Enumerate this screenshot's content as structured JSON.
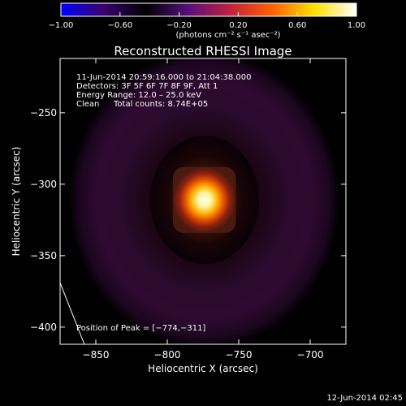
{
  "chart_data": {
    "type": "heatmap",
    "title": "Reconstructed RHESSI Image",
    "xlabel": "Heliocentric X (arcsec)",
    "ylabel": "Heliocentric Y (arcsec)",
    "xlim": [
      -875,
      -675
    ],
    "ylim": [
      -412,
      -212
    ],
    "x_ticks": [
      -850,
      -800,
      -750,
      -700
    ],
    "y_ticks": [
      -250,
      -300,
      -350,
      -400
    ],
    "x_tick_labels": [
      "−850",
      "−800",
      "−750",
      "−700"
    ],
    "y_tick_labels": [
      "−250",
      "−300",
      "−350",
      "−400"
    ],
    "peak_position": [
      -774,
      -311
    ],
    "peak_core_radius_arcsec": 10,
    "inner_glow_radii_arcsec": [
      18,
      26
    ],
    "dark_ring_radius_arcsec": [
      28,
      38
    ],
    "outer_halo_radius_arcsec": 95,
    "colorbar": {
      "min": -1.0,
      "max": 1.0,
      "ticks": [
        -1.0,
        -0.6,
        -0.2,
        0.2,
        0.6,
        1.0
      ],
      "tick_labels": [
        "−1.00",
        "−0.60",
        "−0.20",
        "0.20",
        "0.60",
        "1.00"
      ],
      "unit_label": "(photons cm⁻² s⁻¹ asec⁻²)",
      "stops": [
        "#0000ff",
        "#3a0070",
        "#000000",
        "#55107a",
        "#c02040",
        "#ff6000",
        "#ffe000",
        "#ffffff"
      ]
    },
    "annotations": {
      "time_range": "11-Jun-2014 20:59:16.000 to 21:04:38.000",
      "detectors": "Detectors: 3F 5F 6F 7F 8F 9F, Att 1",
      "energy_range": "Energy Range: 12.0 – 25.0 keV",
      "clean_label": "Clean",
      "total_counts": "Total counts: 8.74E+05",
      "peak_text": "Position of Peak = [−774,−311]"
    },
    "timestamp": "12-Jun-2014 02:45"
  }
}
